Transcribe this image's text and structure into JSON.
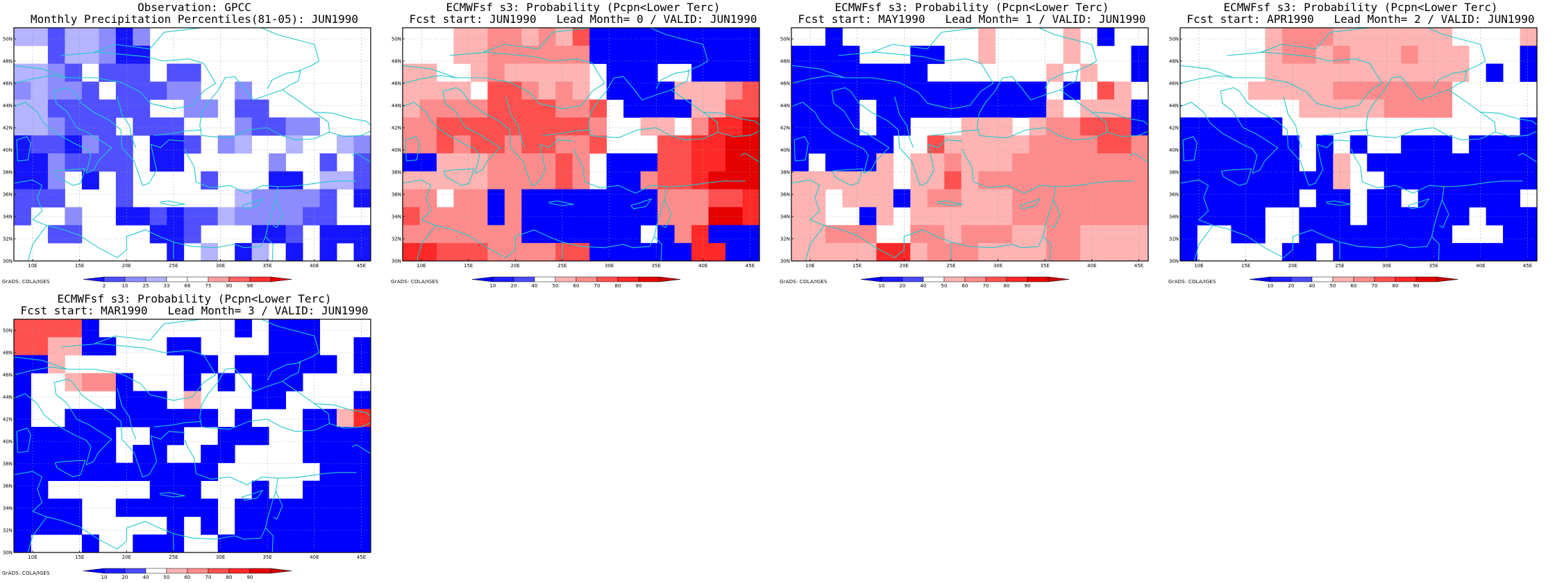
{
  "colors": {
    "map_outline": "#22c8c8",
    "grid": "#999999",
    "frame": "#000000"
  },
  "domain": {
    "lon_range": [
      8,
      46
    ],
    "lat_range": [
      30,
      51
    ],
    "lon_ticks": [
      "10E",
      "15E",
      "20E",
      "25E",
      "30E",
      "35E",
      "40E",
      "45E"
    ],
    "lat_ticks": [
      "30N",
      "32N",
      "34N",
      "36N",
      "38N",
      "40N",
      "42N",
      "44N",
      "46N",
      "48N",
      "50N"
    ]
  },
  "credit": "GrADS: COLA/IGES",
  "scales": {
    "percentile": {
      "colors": [
        "#1414ff",
        "#5050ff",
        "#8c8cff",
        "#b4b4ff",
        "#ffffff",
        "#ffffff",
        "#ffa0a0",
        "#ff6464",
        "#ff3232",
        "#e60000"
      ],
      "labels": [
        "2",
        "10",
        "25",
        "33",
        "66",
        "75",
        "90",
        "98"
      ]
    },
    "probability": {
      "colors": [
        "#0000ff",
        "#1e1eff",
        "#4b4bff",
        "#ffffff",
        "#ffb4b4",
        "#ff8c8c",
        "#ff5050",
        "#ff2828",
        "#e60000",
        "#c80000"
      ],
      "labels": [
        "10",
        "20",
        "40",
        "50",
        "60",
        "70",
        "80",
        "90"
      ]
    }
  },
  "panels": [
    {
      "id": "obs",
      "title_line1": "Observation: GPCC",
      "title_line2": "Monthly Precipitation Percentiles(81-05): JUN1990",
      "scale": "percentile",
      "grid": [
        "DDBDDCAC....EE.E..EEE",
        "EEBDDCAA....E..E...FF",
        "DDCB.BBB.BB.....E.EFF",
        "CDCCB.BBBCC..C....EEE",
        "DDBBBBBB..CC.BB.....E",
        "DDCBBB.BBB...CBBCC..E",
        "ABBACBB.AAB.CD..D.FDC",
        "AACBBBB.AA.....C..BEB",
        "AAC.A.B....B...AA.DDB",
        "BBB...B......DCCCCB.A",
        "B..C..AABABBDCCCCBB..",
        "..BB....AAB...AAB.AAA",
        "..E.EE...A.D.AD.A.A.A"
      ]
    },
    {
      "id": "lead0",
      "title_line1": "ECMWFsf s3: Probability (Pcpn<Lower Terc)",
      "title_line2": "Fcst start: JUN1990   Lead Month= 0 / VALID: JUN1990",
      "scale": "probability",
      "grid": [
        "...EEFFEFEGAAAAAAAAAA",
        "...EEFFFFFFAAAAAAAAAA",
        "EE..EFEEEEE.AAA..AAAA",
        "EEEE.GGFEFE.AAAAEEEFG",
        "EFFFFGGGGFFG.AAAAEEGG",
        "FFGGGGGGGGGF..EE.FHHI",
        "FFGFGGFGGFFG...GGHHII",
        "AAEEEFFFFGF.AAAGGHHII",
        "EEEEEFFFFGF.AAFGGHIII",
        "FF.FFAFAAAAAAAAFFFGGH",
        "GFFFFAFAAAAAAAAFFFIIH",
        "FFFFFFFAAAAAAA.AFHAAA",
        "HHGGGFFFFGGAAAAAAHHAA"
      ]
    },
    {
      "id": "lead1",
      "title_line1": "ECMWFsf s3: Probability (Pcpn<Lower Terc)",
      "title_line2": "Fcst start: MAY1990   Lead Month= 1 / VALID: JUN1990",
      "scale": "probability",
      "grid": [
        "..A........E....E.A..",
        "AAAA...AA..E....E...A",
        "AAAAAAAA.......E.E..A",
        "AAAAAAAAAAAAAAA.A.GE.",
        "AAAA.AAAAAAAAAAE.EEEA",
        "AAAA.AA...EEE.EFFGGGA",
        "AAAAAA..GEEEEEFFFFGGF",
        "A.AAAE.EEFEEEFFFFFFFF",
        "EEEEEE.EEGEFFFFFFFFFF",
        "EE.EEEAEFFEEEFFFFFFFF",
        "EE..AE.EEEEEEFFFFFFFF",
        "EEFFF..FFEFFFEEFFEEEE",
        "EEEEEHHEFFFEEEEFFEEEE"
      ]
    },
    {
      "id": "lead2",
      "title_line1": "ECMWFsf s3: Probability (Pcpn<Lower Terc)",
      "title_line2": "Fcst start: APR1990   Lead Month= 2 / VALID: JUN1990",
      "scale": "probability",
      "grid": [
        ".....EFFFEEEEEEE....E",
        ".....EFFEFEEEFEEE...A",
        ".....EEEEEEEEEEEE.A.A",
        "....EEEEEFFFFFFF.....",
        ".......EEEEEFFFF.....",
        "AAAAAA..............A",
        "AAAAAAA.A.A..AAA.AAAA",
        "AAAAAAA.AE.AAAAAAAAAA",
        "AAAAAAAAAE..AAAAAAAAA",
        "AAAAAAA.AA.AA.AAAAAA.",
        "AAAAA..AAA.AAAAAA.AAA",
        "A..AA..AAAAAAAAA...AA",
        "A.....AA.AAAAAAAAAAAA"
      ]
    },
    {
      "id": "lead3",
      "title_line1": "ECMWFsf s3: Probability (Pcpn<Lower Terc)",
      "title_line2": "Fcst start: MAR1990   Lead Month= 3 / VALID: JUN1990",
      "scale": "probability",
      "grid": [
        "GGGGA........A.AAA...",
        "GGEEAA...AA....AAA..A",
        "AAE.......AA.AAAAAA.A",
        "A..EFFA...A.A.AAA....",
        "A.....AAA.E...AA....A",
        "A..AAAAAAAAA.A...AAEH",
        "AAAAAA..AA..AAA..AAAA",
        "AAAAAA.AA..AA....AAAA",
        "AAAAAAAAAAAA......AAA",
        "AA......AAA...A..AAAA",
        "AAAA..AAAAAA.AAAAAAAA",
        "AAAA.....A.A.AAAAAAAA",
        "A...A..AAA..AAAAAAAAA"
      ]
    }
  ]
}
